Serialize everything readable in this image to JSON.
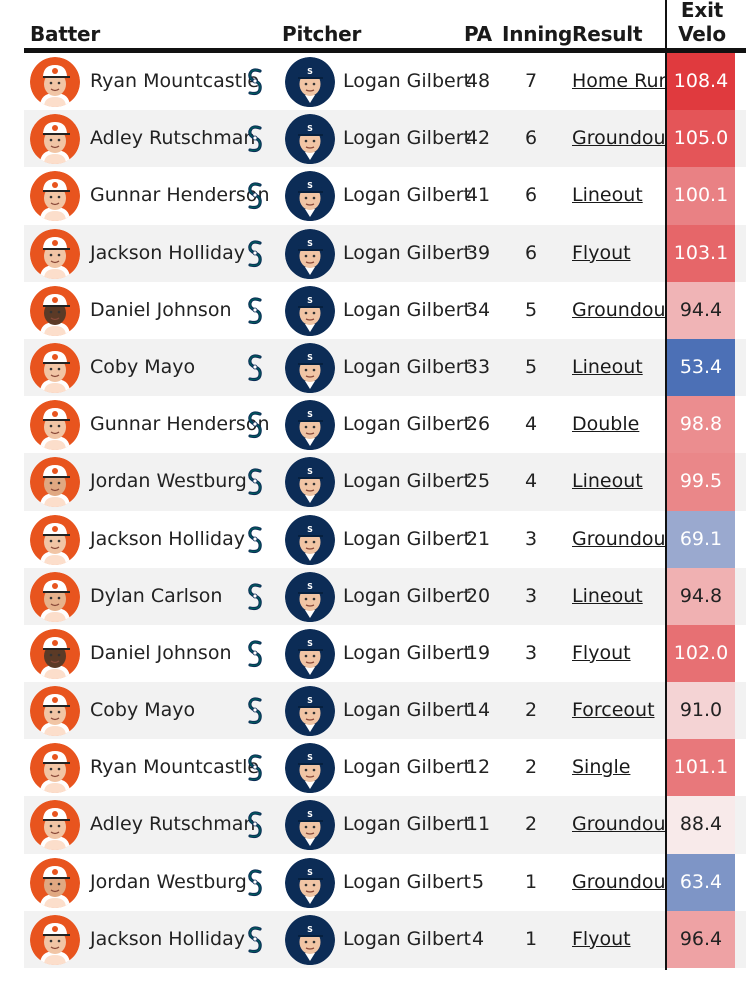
{
  "headers": {
    "batter": "Batter",
    "pitcher": "Pitcher",
    "pa": "PA",
    "inning": "Inning",
    "result": "Result",
    "exit_velo_line1": "Exit",
    "exit_velo_line2": "Velo"
  },
  "colors": {
    "orioles_orange": "#e8541e",
    "mariners_navy": "#0c2c56",
    "mariners_teal": "#005c5c",
    "hot": "#e03a3e",
    "cold": "#4a6fb5"
  },
  "rows": [
    {
      "batter": "Ryan Mountcastle",
      "pitcher": "Logan Gilbert",
      "pa": "48",
      "inning": "7",
      "result": "Home Run",
      "exit_velo": "108.4",
      "skin": "#f1c5a5"
    },
    {
      "batter": "Adley Rutschman",
      "pitcher": "Logan Gilbert",
      "pa": "42",
      "inning": "6",
      "result": "Groundout",
      "exit_velo": "105.0",
      "skin": "#f1c5a5"
    },
    {
      "batter": "Gunnar Henderson",
      "pitcher": "Logan Gilbert",
      "pa": "41",
      "inning": "6",
      "result": "Lineout",
      "exit_velo": "100.1",
      "skin": "#f1c5a5"
    },
    {
      "batter": "Jackson Holliday",
      "pitcher": "Logan Gilbert",
      "pa": "39",
      "inning": "6",
      "result": "Flyout",
      "exit_velo": "103.1",
      "skin": "#f1c5a5"
    },
    {
      "batter": "Daniel Johnson",
      "pitcher": "Logan Gilbert",
      "pa": "34",
      "inning": "5",
      "result": "Groundout",
      "exit_velo": "94.4",
      "skin": "#5b3a26"
    },
    {
      "batter": "Coby Mayo",
      "pitcher": "Logan Gilbert",
      "pa": "33",
      "inning": "5",
      "result": "Lineout",
      "exit_velo": "53.4",
      "skin": "#f1c5a5"
    },
    {
      "batter": "Gunnar Henderson",
      "pitcher": "Logan Gilbert",
      "pa": "26",
      "inning": "4",
      "result": "Double",
      "exit_velo": "98.8",
      "skin": "#f1c5a5"
    },
    {
      "batter": "Jordan Westburg",
      "pitcher": "Logan Gilbert",
      "pa": "25",
      "inning": "4",
      "result": "Lineout",
      "exit_velo": "99.5",
      "skin": "#e0a882"
    },
    {
      "batter": "Jackson Holliday",
      "pitcher": "Logan Gilbert",
      "pa": "21",
      "inning": "3",
      "result": "Groundout",
      "exit_velo": "69.1",
      "skin": "#f1c5a5"
    },
    {
      "batter": "Dylan Carlson",
      "pitcher": "Logan Gilbert",
      "pa": "20",
      "inning": "3",
      "result": "Lineout",
      "exit_velo": "94.8",
      "skin": "#e6b28c"
    },
    {
      "batter": "Daniel Johnson",
      "pitcher": "Logan Gilbert",
      "pa": "19",
      "inning": "3",
      "result": "Flyout",
      "exit_velo": "102.0",
      "skin": "#5b3a26"
    },
    {
      "batter": "Coby Mayo",
      "pitcher": "Logan Gilbert",
      "pa": "14",
      "inning": "2",
      "result": "Forceout",
      "exit_velo": "91.0",
      "skin": "#f1c5a5"
    },
    {
      "batter": "Ryan Mountcastle",
      "pitcher": "Logan Gilbert",
      "pa": "12",
      "inning": "2",
      "result": "Single",
      "exit_velo": "101.1",
      "skin": "#f1c5a5"
    },
    {
      "batter": "Adley Rutschman",
      "pitcher": "Logan Gilbert",
      "pa": "11",
      "inning": "2",
      "result": "Groundout",
      "exit_velo": "88.4",
      "skin": "#f1c5a5"
    },
    {
      "batter": "Jordan Westburg",
      "pitcher": "Logan Gilbert",
      "pa": "5",
      "inning": "1",
      "result": "Groundout",
      "exit_velo": "63.4",
      "skin": "#e0a882"
    },
    {
      "batter": "Jackson Holliday",
      "pitcher": "Logan Gilbert",
      "pa": "4",
      "inning": "1",
      "result": "Flyout",
      "exit_velo": "96.4",
      "skin": "#f1c5a5"
    }
  ]
}
